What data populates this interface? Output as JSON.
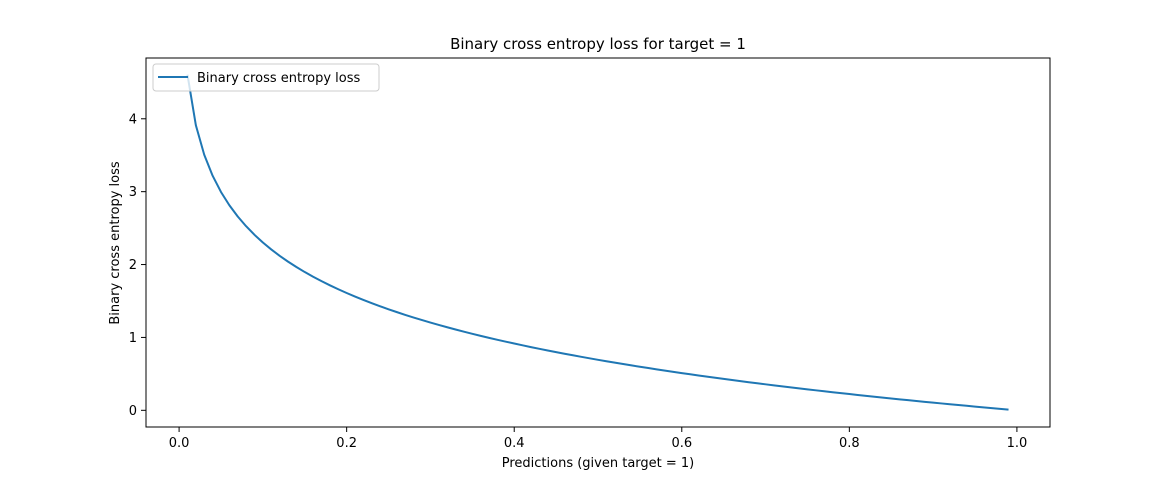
{
  "chart_data": {
    "type": "line",
    "title": "Binary cross entropy loss for target = 1",
    "xlabel": "Predictions (given target = 1)",
    "ylabel": "Binary cross entropy loss",
    "xlim": [
      -0.0395,
      1.0395
    ],
    "ylim": [
      -0.229,
      4.834
    ],
    "xticks": [
      0.0,
      0.2,
      0.4,
      0.6,
      0.8,
      1.0
    ],
    "xtick_labels": [
      "0.0",
      "0.2",
      "0.4",
      "0.6",
      "0.8",
      "1.0"
    ],
    "yticks": [
      0,
      1,
      2,
      3,
      4
    ],
    "ytick_labels": [
      "0",
      "1",
      "2",
      "3",
      "4"
    ],
    "grid": false,
    "legend_position": "top-left",
    "series": [
      {
        "name": "Binary cross entropy loss",
        "color": "#1f77b4",
        "x": [
          0.01,
          0.02,
          0.03,
          0.04,
          0.05,
          0.06,
          0.07,
          0.08,
          0.09,
          0.1,
          0.11,
          0.12,
          0.13,
          0.14,
          0.15,
          0.16,
          0.17,
          0.18,
          0.19,
          0.2,
          0.21,
          0.22,
          0.23,
          0.24,
          0.25,
          0.26,
          0.27,
          0.28,
          0.29,
          0.3,
          0.31,
          0.32,
          0.33,
          0.34,
          0.35,
          0.36,
          0.37,
          0.38,
          0.39,
          0.4,
          0.41,
          0.42,
          0.43,
          0.44,
          0.45,
          0.46,
          0.47,
          0.48,
          0.49,
          0.5,
          0.51,
          0.52,
          0.53,
          0.54,
          0.55,
          0.56,
          0.57,
          0.58,
          0.59,
          0.6,
          0.61,
          0.62,
          0.63,
          0.64,
          0.65,
          0.66,
          0.67,
          0.68,
          0.69,
          0.7,
          0.71,
          0.72,
          0.73,
          0.74,
          0.75,
          0.76,
          0.77,
          0.78,
          0.79,
          0.8,
          0.81,
          0.82,
          0.83,
          0.84,
          0.85,
          0.86,
          0.87,
          0.88,
          0.89,
          0.9,
          0.91,
          0.92,
          0.93,
          0.94,
          0.95,
          0.96,
          0.97,
          0.98,
          0.99
        ],
        "y": [
          4.6052,
          3.912,
          3.5066,
          3.2189,
          2.9957,
          2.8134,
          2.6593,
          2.5257,
          2.4079,
          2.3026,
          2.2073,
          2.1203,
          2.0402,
          1.9661,
          1.8971,
          1.8326,
          1.772,
          1.7148,
          1.6607,
          1.6094,
          1.5606,
          1.5141,
          1.4697,
          1.4271,
          1.3863,
          1.3471,
          1.3093,
          1.273,
          1.2379,
          1.204,
          1.1712,
          1.1394,
          1.1087,
          1.0788,
          1.0498,
          1.0217,
          0.9943,
          0.9676,
          0.9416,
          0.9163,
          0.8916,
          0.8675,
          0.844,
          0.821,
          0.7985,
          0.7765,
          0.755,
          0.734,
          0.7133,
          0.6931,
          0.6733,
          0.6539,
          0.6349,
          0.6162,
          0.5978,
          0.5798,
          0.5621,
          0.5447,
          0.5276,
          0.5108,
          0.4943,
          0.478,
          0.462,
          0.4463,
          0.4308,
          0.4155,
          0.4005,
          0.3857,
          0.3711,
          0.3567,
          0.3425,
          0.3285,
          0.3147,
          0.3011,
          0.2877,
          0.2744,
          0.2614,
          0.2485,
          0.2357,
          0.2231,
          0.2107,
          0.1985,
          0.1863,
          0.1744,
          0.1625,
          0.1508,
          0.1393,
          0.1278,
          0.1165,
          0.1054,
          0.0943,
          0.0834,
          0.0726,
          0.0619,
          0.0513,
          0.0408,
          0.0305,
          0.0202,
          0.0101
        ]
      }
    ]
  }
}
